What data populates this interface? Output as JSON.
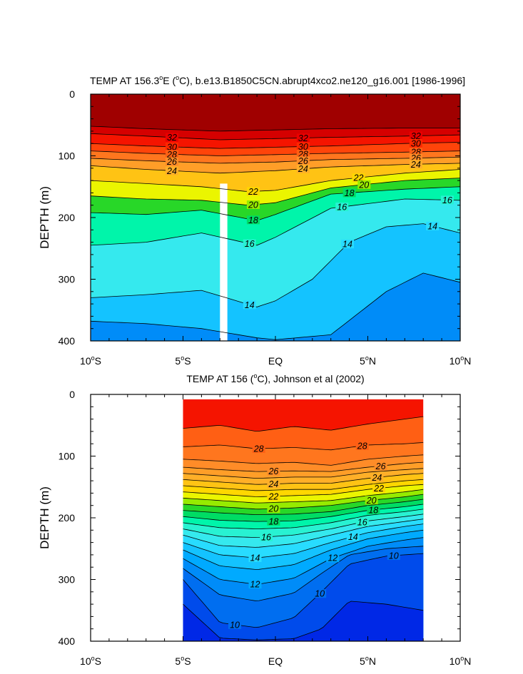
{
  "chart_data": [
    {
      "type": "contour",
      "title": "TEMP AT 156.3°E (°C), b.e13.B1850C5CN.abrupt4xco2.ne120_g16.001 [1986-1996]",
      "title_parts": {
        "a": "TEMP AT 156.3",
        "b": "o",
        "c": "E (",
        "d": "o",
        "e": "C), b.e13.B1850C5CN.abrupt4xco2.ne120_g16.001 [1986-1996]"
      },
      "xlabel": "",
      "ylabel": "DEPTH (m)",
      "xlim": [
        -10,
        10
      ],
      "ylim": [
        0,
        400
      ],
      "y_inverted": true,
      "x_ticks": [
        {
          "value": -10,
          "num": "10",
          "deg": "o",
          "hem": "S"
        },
        {
          "value": -5,
          "num": "5",
          "deg": "o",
          "hem": "S"
        },
        {
          "value": 0,
          "num": "EQ",
          "deg": "",
          "hem": ""
        },
        {
          "value": 5,
          "num": "5",
          "deg": "o",
          "hem": "N"
        },
        {
          "value": 10,
          "num": "10",
          "deg": "o",
          "hem": "N"
        }
      ],
      "y_ticks": [
        0,
        100,
        200,
        300,
        400
      ],
      "data_extent_x": [
        -10,
        10
      ],
      "missing_band_x": [
        -3.0,
        -2.6
      ],
      "missing_band_top_depth": 145,
      "contours": [
        {
          "level": 34,
          "x": [
            -10,
            -7,
            -3,
            0,
            3,
            7,
            10
          ],
          "depth": [
            52,
            56,
            60,
            58,
            56,
            55,
            55
          ]
        },
        {
          "level": 32,
          "x": [
            -10,
            -7,
            -3,
            0,
            3,
            7,
            10
          ],
          "depth": [
            64,
            68,
            74,
            72,
            70,
            68,
            66
          ]
        },
        {
          "level": 30,
          "x": [
            -10,
            -7,
            -3,
            0,
            3,
            7,
            10
          ],
          "depth": [
            80,
            84,
            88,
            86,
            84,
            80,
            78
          ]
        },
        {
          "level": 28,
          "x": [
            -10,
            -7,
            -3,
            0,
            3,
            7,
            10
          ],
          "depth": [
            92,
            96,
            100,
            98,
            96,
            94,
            92
          ]
        },
        {
          "level": 26,
          "x": [
            -10,
            -7,
            -3,
            0,
            3,
            7,
            10
          ],
          "depth": [
            104,
            108,
            112,
            110,
            106,
            104,
            102
          ]
        },
        {
          "level": 24,
          "x": [
            -10,
            -7,
            -3,
            0,
            3,
            7,
            10
          ],
          "depth": [
            116,
            122,
            128,
            124,
            118,
            114,
            112
          ]
        },
        {
          "level": 22,
          "x": [
            -10,
            -7,
            -4,
            -1.5,
            0,
            3,
            7,
            10
          ],
          "depth": [
            140,
            145,
            150,
            158,
            156,
            140,
            128,
            122
          ]
        },
        {
          "level": 20,
          "x": [
            -10,
            -7,
            -4,
            -1.5,
            0,
            3,
            7,
            10
          ],
          "depth": [
            165,
            170,
            172,
            180,
            176,
            152,
            140,
            136
          ]
        },
        {
          "level": 18,
          "x": [
            -10,
            -7,
            -4,
            -1,
            0,
            3,
            7,
            10
          ],
          "depth": [
            192,
            195,
            188,
            205,
            195,
            162,
            154,
            150
          ]
        },
        {
          "level": 16,
          "x": [
            -10,
            -7,
            -4,
            -1,
            0,
            3,
            7,
            10
          ],
          "depth": [
            245,
            240,
            225,
            245,
            232,
            185,
            170,
            172
          ]
        },
        {
          "level": 14,
          "x": [
            -10,
            -7,
            -4,
            -1,
            0,
            2,
            4,
            6,
            8,
            10
          ],
          "depth": [
            330,
            325,
            318,
            345,
            335,
            300,
            240,
            215,
            210,
            225
          ]
        },
        {
          "level": 12,
          "x": [
            -10,
            -7,
            -4,
            -1,
            0,
            3,
            6,
            8,
            10
          ],
          "depth": [
            368,
            372,
            380,
            395,
            398,
            390,
            320,
            290,
            305
          ]
        }
      ],
      "contour_labels": [
        {
          "level": 32,
          "text": "32",
          "x": [
            -5.6,
            1.5,
            7.6
          ]
        },
        {
          "level": 30,
          "text": "30",
          "x": [
            -5.6,
            1.5,
            7.6
          ]
        },
        {
          "level": 28,
          "text": "28",
          "x": [
            -5.6,
            1.5,
            7.6
          ]
        },
        {
          "level": 26,
          "text": "26",
          "x": [
            -5.6,
            1.5,
            7.6
          ]
        },
        {
          "level": 24,
          "text": "24",
          "x": [
            -5.6,
            1.5,
            7.6
          ]
        },
        {
          "level": 22,
          "text": "22",
          "x": [
            -1.2,
            4.5
          ]
        },
        {
          "level": 20,
          "text": "20",
          "x": [
            -1.2,
            4.8
          ]
        },
        {
          "level": 18,
          "text": "18",
          "x": [
            -1.2,
            4.0
          ]
        },
        {
          "level": 16,
          "text": "16",
          "x": [
            -1.4,
            3.6,
            9.3
          ]
        },
        {
          "level": 14,
          "text": "14",
          "x": [
            -1.4,
            3.9,
            8.5
          ]
        }
      ]
    },
    {
      "type": "contour",
      "title": "TEMP AT 156 (°C), Johnson et al (2002)",
      "title_parts": {
        "a": "TEMP AT 156 (",
        "b": "o",
        "c": "C), Johnson et al (2002)"
      },
      "xlabel": "",
      "ylabel": "DEPTH (m)",
      "xlim": [
        -10,
        10
      ],
      "ylim": [
        0,
        400
      ],
      "y_inverted": true,
      "x_ticks": [
        {
          "value": -10,
          "num": "10",
          "deg": "o",
          "hem": "S"
        },
        {
          "value": -5,
          "num": "5",
          "deg": "o",
          "hem": "S"
        },
        {
          "value": 0,
          "num": "EQ",
          "deg": "",
          "hem": ""
        },
        {
          "value": 5,
          "num": "5",
          "deg": "o",
          "hem": "N"
        },
        {
          "value": 10,
          "num": "10",
          "deg": "o",
          "hem": "N"
        }
      ],
      "y_ticks": [
        0,
        100,
        200,
        300,
        400
      ],
      "data_extent_x": [
        -5,
        8
      ],
      "data_top_depth": 8,
      "contours": [
        {
          "level": 29,
          "x": [
            -5,
            -3,
            -1,
            1,
            3,
            5,
            7,
            8
          ],
          "depth": [
            55,
            50,
            60,
            52,
            58,
            48,
            40,
            36
          ]
        },
        {
          "level": 28,
          "x": [
            -5,
            -3,
            -1,
            1,
            3,
            5,
            7,
            8
          ],
          "depth": [
            85,
            82,
            88,
            86,
            90,
            82,
            80,
            78
          ]
        },
        {
          "level": 27,
          "x": [
            -5,
            -3,
            -1,
            1,
            3,
            5,
            7,
            8
          ],
          "depth": [
            105,
            108,
            112,
            110,
            115,
            105,
            100,
            98
          ]
        },
        {
          "level": 26,
          "x": [
            -5,
            -3,
            -1,
            1,
            3,
            5,
            7,
            8
          ],
          "depth": [
            118,
            122,
            125,
            124,
            125,
            118,
            112,
            110
          ]
        },
        {
          "level": 25,
          "x": [
            -5,
            -3,
            -1,
            1,
            3,
            5,
            7,
            8
          ],
          "depth": [
            128,
            132,
            136,
            134,
            134,
            126,
            122,
            120
          ]
        },
        {
          "level": 24,
          "x": [
            -5,
            -3,
            -1,
            1,
            3,
            5,
            7,
            8
          ],
          "depth": [
            138,
            142,
            146,
            144,
            144,
            136,
            130,
            128
          ]
        },
        {
          "level": 23,
          "x": [
            -5,
            -3,
            -1,
            1,
            3,
            5,
            7,
            8
          ],
          "depth": [
            148,
            152,
            156,
            154,
            154,
            146,
            140,
            138
          ]
        },
        {
          "level": 22,
          "x": [
            -5,
            -3,
            -1,
            1,
            3,
            5,
            7,
            8
          ],
          "depth": [
            158,
            162,
            166,
            164,
            162,
            154,
            148,
            146
          ]
        },
        {
          "level": 21,
          "x": [
            -5,
            -3,
            -1,
            1,
            3,
            5,
            7,
            8
          ],
          "depth": [
            168,
            172,
            176,
            174,
            172,
            164,
            158,
            154
          ]
        },
        {
          "level": 20,
          "x": [
            -5,
            -3,
            -1,
            1,
            3,
            5,
            7,
            8
          ],
          "depth": [
            178,
            182,
            186,
            184,
            180,
            172,
            166,
            162
          ]
        },
        {
          "level": 19,
          "x": [
            -5,
            -3,
            -1,
            1,
            3,
            5,
            7,
            8
          ],
          "depth": [
            188,
            192,
            195,
            194,
            190,
            180,
            174,
            170
          ]
        },
        {
          "level": 18,
          "x": [
            -5,
            -3,
            -1,
            1,
            3,
            5,
            7,
            8
          ],
          "depth": [
            198,
            204,
            206,
            205,
            198,
            188,
            182,
            178
          ]
        },
        {
          "level": 17,
          "x": [
            -5,
            -3,
            -1,
            1,
            3,
            5,
            7,
            8
          ],
          "depth": [
            208,
            216,
            218,
            216,
            208,
            196,
            190,
            186
          ]
        },
        {
          "level": 16,
          "x": [
            -5,
            -3,
            -1,
            1,
            3,
            5,
            7,
            8
          ],
          "depth": [
            218,
            230,
            232,
            228,
            218,
            205,
            198,
            194
          ]
        },
        {
          "level": 15,
          "x": [
            -5,
            -3,
            -1,
            1,
            3,
            5,
            7,
            8
          ],
          "depth": [
            228,
            245,
            248,
            242,
            228,
            214,
            206,
            202
          ]
        },
        {
          "level": 14,
          "x": [
            -5,
            -3,
            -1,
            1,
            3,
            5,
            7,
            8
          ],
          "depth": [
            240,
            260,
            265,
            258,
            240,
            224,
            214,
            210
          ]
        },
        {
          "level": 13,
          "x": [
            -5,
            -3,
            -1,
            1,
            3,
            5,
            7,
            8
          ],
          "depth": [
            252,
            278,
            284,
            276,
            252,
            234,
            224,
            220
          ]
        },
        {
          "level": 12,
          "x": [
            -5,
            -3,
            -1,
            1,
            3,
            5,
            7,
            8
          ],
          "depth": [
            266,
            300,
            308,
            298,
            266,
            246,
            236,
            232
          ]
        },
        {
          "level": 11,
          "x": [
            -5,
            -3,
            -1,
            1,
            2.5,
            4,
            6,
            8
          ],
          "depth": [
            282,
            325,
            335,
            322,
            290,
            260,
            250,
            246
          ]
        },
        {
          "level": 10,
          "x": [
            -5,
            -3,
            -1,
            1,
            2.5,
            4,
            6,
            8
          ],
          "depth": [
            300,
            370,
            378,
            362,
            320,
            275,
            262,
            258
          ]
        },
        {
          "level": 9,
          "x": [
            -5,
            -3,
            -1,
            1,
            2.5,
            4,
            6,
            8
          ],
          "depth": [
            340,
            395,
            398,
            396,
            380,
            335,
            340,
            350
          ]
        }
      ],
      "contour_labels": [
        {
          "level": 28,
          "text": "28",
          "x": [
            -0.9,
            4.7
          ]
        },
        {
          "level": 26,
          "text": "26",
          "x": [
            -0.1,
            5.7
          ]
        },
        {
          "level": 24,
          "text": "24",
          "x": [
            -0.1,
            5.5
          ]
        },
        {
          "level": 22,
          "text": "22",
          "x": [
            -0.1,
            5.6
          ]
        },
        {
          "level": 20,
          "text": "20",
          "x": [
            -0.1,
            5.2
          ]
        },
        {
          "level": 18,
          "text": "18",
          "x": [
            -0.1,
            5.3
          ]
        },
        {
          "level": 16,
          "text": "16",
          "x": [
            -0.5,
            4.7
          ]
        },
        {
          "level": 14,
          "text": "14",
          "x": [
            -1.1,
            4.2
          ]
        },
        {
          "level": 12,
          "text": "12",
          "x": [
            -1.1,
            3.1
          ]
        },
        {
          "level": 10,
          "text": "10",
          "x": [
            -2.2,
            2.4,
            6.4
          ]
        }
      ]
    }
  ]
}
